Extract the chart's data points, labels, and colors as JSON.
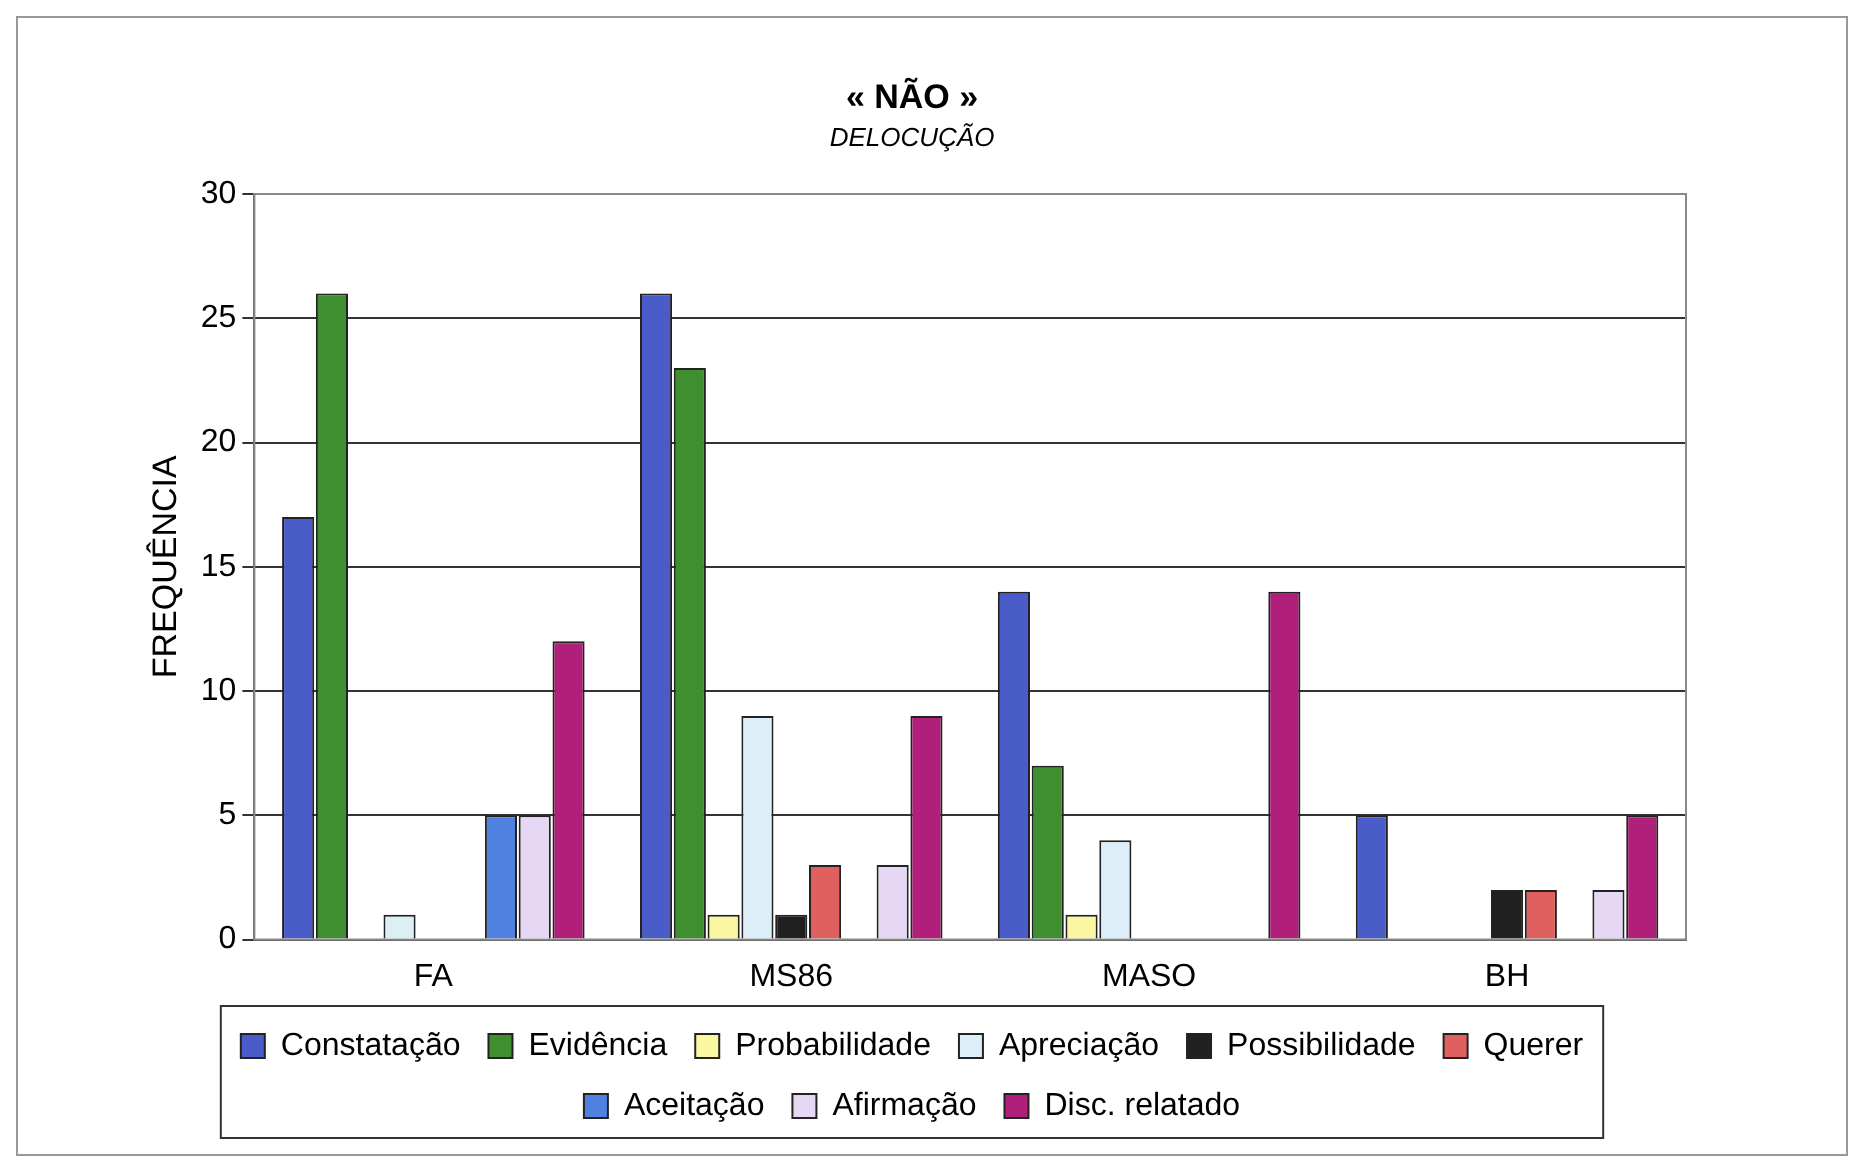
{
  "chart_data": {
    "type": "bar",
    "title": "« NÃO »",
    "subtitle": "DELOCUÇÃO",
    "ylabel": "FREQUÊNCIA",
    "categories": [
      "FA",
      "MS86",
      "MASO",
      "BH"
    ],
    "series": [
      {
        "name": "Constatação",
        "color": "#4a5cc8",
        "values": [
          17,
          26,
          14,
          5
        ]
      },
      {
        "name": "Evidência",
        "color": "#3f8f30",
        "values": [
          26,
          23,
          7,
          0
        ]
      },
      {
        "name": "Probabilidade",
        "color": "#fbf7a0",
        "values": [
          0,
          1,
          1,
          0
        ]
      },
      {
        "name": "Apreciação",
        "color": "#dceef8",
        "values": [
          1,
          9,
          4,
          0
        ]
      },
      {
        "name": "Possibilidade",
        "color": "#202020",
        "values": [
          0,
          1,
          0,
          2
        ]
      },
      {
        "name": "Querer",
        "color": "#e06060",
        "values": [
          0,
          3,
          0,
          2
        ]
      },
      {
        "name": "Aceitação",
        "color": "#5080e0",
        "values": [
          5,
          0,
          0,
          0
        ]
      },
      {
        "name": "Afirmação",
        "color": "#e6d8f4",
        "values": [
          5,
          3,
          0,
          2
        ]
      },
      {
        "name": "Disc. relatado",
        "color": "#b0207a",
        "values": [
          12,
          9,
          14,
          5
        ]
      }
    ],
    "ylim": [
      0,
      30
    ],
    "yticks": [
      0,
      5,
      10,
      15,
      20,
      25,
      30
    ],
    "grid": "y",
    "legend": "bottom"
  }
}
